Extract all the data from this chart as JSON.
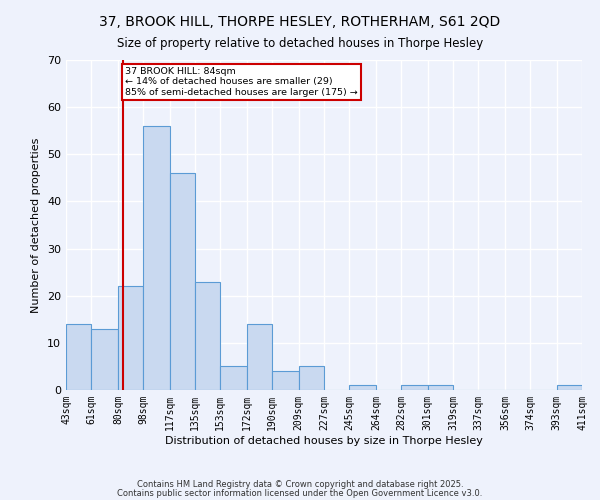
{
  "title": "37, BROOK HILL, THORPE HESLEY, ROTHERHAM, S61 2QD",
  "subtitle": "Size of property relative to detached houses in Thorpe Hesley",
  "xlabel": "Distribution of detached houses by size in Thorpe Hesley",
  "ylabel": "Number of detached properties",
  "bin_labels": [
    "43sqm",
    "61sqm",
    "80sqm",
    "98sqm",
    "117sqm",
    "135sqm",
    "153sqm",
    "172sqm",
    "190sqm",
    "209sqm",
    "227sqm",
    "245sqm",
    "264sqm",
    "282sqm",
    "301sqm",
    "319sqm",
    "337sqm",
    "356sqm",
    "374sqm",
    "393sqm",
    "411sqm"
  ],
  "bin_edges": [
    43,
    61,
    80,
    98,
    117,
    135,
    153,
    172,
    190,
    209,
    227,
    245,
    264,
    282,
    301,
    319,
    337,
    356,
    374,
    393,
    411
  ],
  "values": [
    14,
    13,
    22,
    56,
    46,
    23,
    5,
    14,
    4,
    5,
    0,
    1,
    0,
    1,
    1,
    0,
    0,
    0,
    0,
    1
  ],
  "bar_color": "#c9d9f0",
  "bar_edge_color": "#5b9bd5",
  "red_line_x": 84,
  "annotation_line1": "37 BROOK HILL: 84sqm",
  "annotation_line2": "← 14% of detached houses are smaller (29)",
  "annotation_line3": "85% of semi-detached houses are larger (175) →",
  "annotation_box_color": "#ffffff",
  "annotation_box_edge_color": "#cc0000",
  "footer_line1": "Contains HM Land Registry data © Crown copyright and database right 2025.",
  "footer_line2": "Contains public sector information licensed under the Open Government Licence v3.0.",
  "ylim": [
    0,
    70
  ],
  "yticks": [
    0,
    10,
    20,
    30,
    40,
    50,
    60,
    70
  ],
  "background_color": "#eef2fc",
  "grid_color": "#ffffff",
  "title_fontsize": 10,
  "subtitle_fontsize": 8.5,
  "axis_label_fontsize": 8,
  "tick_fontsize": 7,
  "footer_fontsize": 6
}
